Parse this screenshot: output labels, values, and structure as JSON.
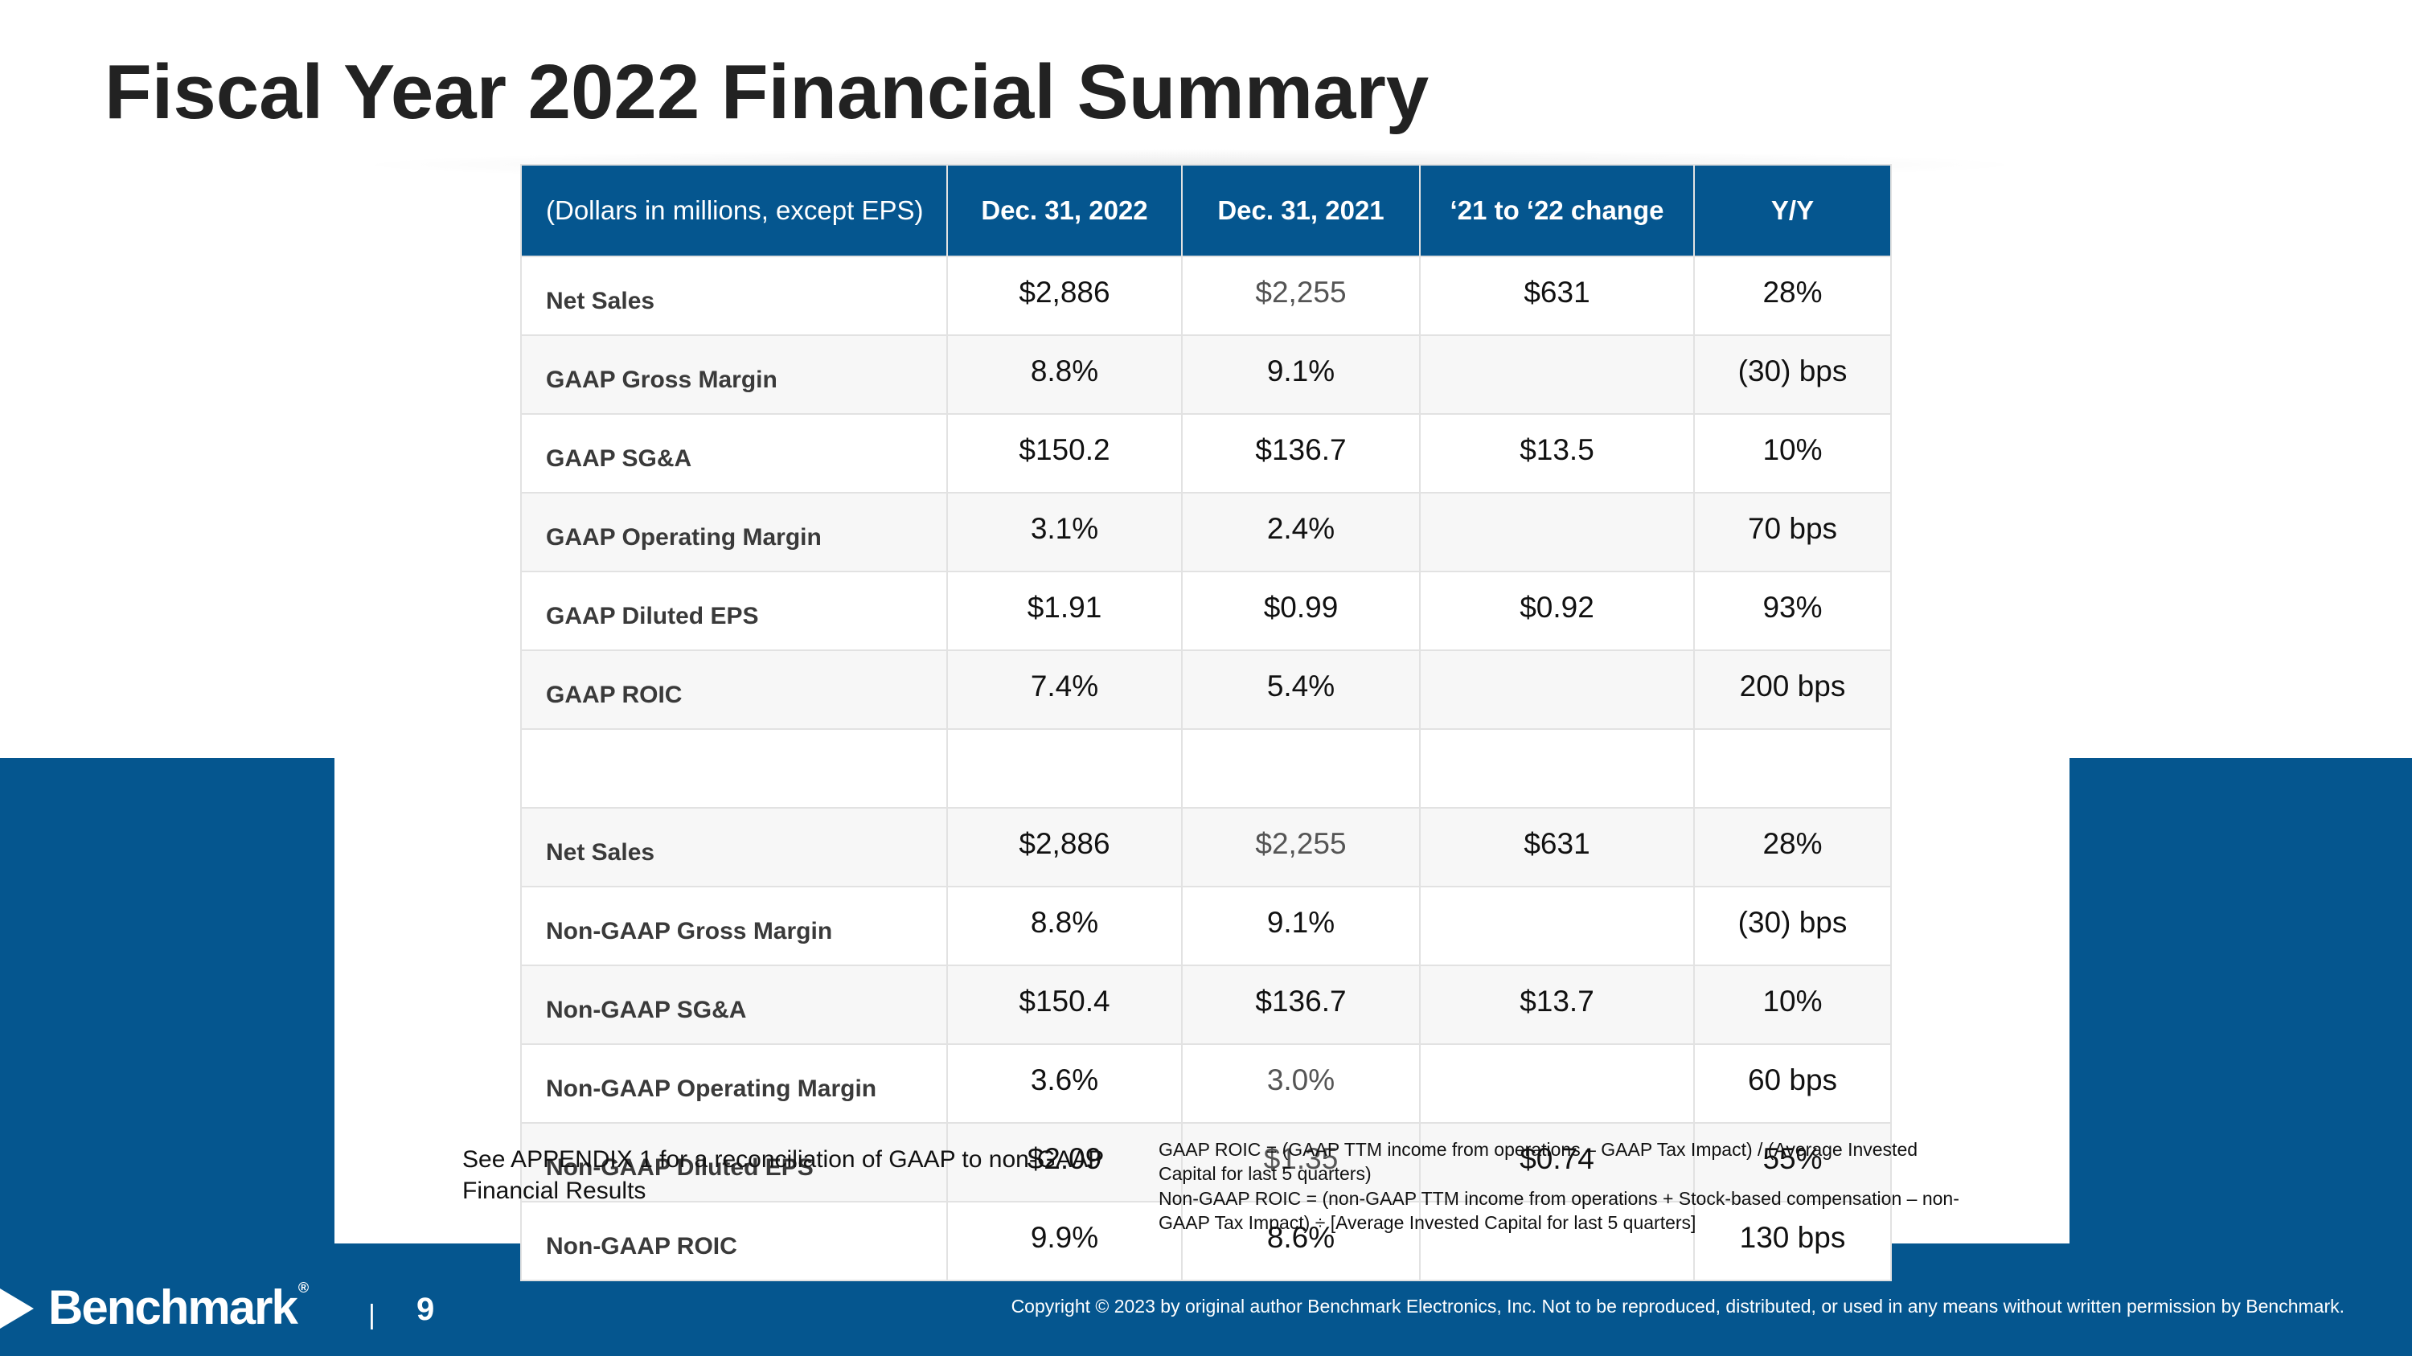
{
  "slide": {
    "title": "Fiscal Year 2022 Financial Summary",
    "page_number": "9",
    "pipe": "|"
  },
  "table": {
    "headers": [
      "(Dollars in millions, except EPS)",
      "Dec. 31, 2022",
      "Dec. 31, 2021",
      "‘21 to ‘22 change",
      "Y/Y"
    ],
    "rows": [
      [
        "Net Sales",
        "$2,886",
        "$2,255",
        "$631",
        "28%"
      ],
      [
        "GAAP Gross Margin",
        "8.8%",
        "9.1%",
        "",
        "(30) bps"
      ],
      [
        "GAAP SG&A",
        "$150.2",
        "$136.7",
        "$13.5",
        "10%"
      ],
      [
        "GAAP Operating Margin",
        "3.1%",
        "2.4%",
        "",
        "70 bps"
      ],
      [
        "GAAP Diluted EPS",
        "$1.91",
        "$0.99",
        "$0.92",
        "93%"
      ],
      [
        "GAAP ROIC",
        "7.4%",
        "5.4%",
        "",
        "200 bps"
      ],
      [
        "",
        "",
        "",
        "",
        ""
      ],
      [
        "Net Sales",
        "$2,886",
        "$2,255",
        "$631",
        "28%"
      ],
      [
        "Non-GAAP Gross Margin",
        "8.8%",
        "9.1%",
        "",
        "(30) bps"
      ],
      [
        "Non-GAAP SG&A",
        "$150.4",
        "$136.7",
        "$13.7",
        "10%"
      ],
      [
        "Non-GAAP Operating Margin",
        "3.6%",
        "3.0%",
        "",
        "60 bps"
      ],
      [
        "Non-GAAP Diluted EPS",
        "$2.09",
        "$1.35",
        "$0.74",
        "55%"
      ],
      [
        "Non-GAAP ROIC",
        "9.9%",
        "8.6%",
        "",
        "130 bps"
      ]
    ]
  },
  "notes": {
    "appendix": "See APPENDIX 1 for a reconciliation of GAAP to non-GAAP Financial Results",
    "gaap_roic": "GAAP ROIC = (GAAP TTM income from operations – GAAP Tax Impact) / (Average Invested Capital for last 5 quarters)",
    "non_gaap_roic": "Non-GAAP ROIC = (non-GAAP TTM income from operations + Stock-based compensation – non-GAAP Tax Impact) ÷ [Average Invested Capital for last 5 quarters]"
  },
  "footer": {
    "logo_text": "Benchmark",
    "logo_mark": "®",
    "copyright": "Copyright © 2023 by original author Benchmark Electronics, Inc. Not to be reproduced, distributed, or used in any means without written permission by Benchmark."
  },
  "colors": {
    "brand_blue": "#05568f",
    "title_text": "#222222",
    "row_alt": "#f7f7f7"
  }
}
